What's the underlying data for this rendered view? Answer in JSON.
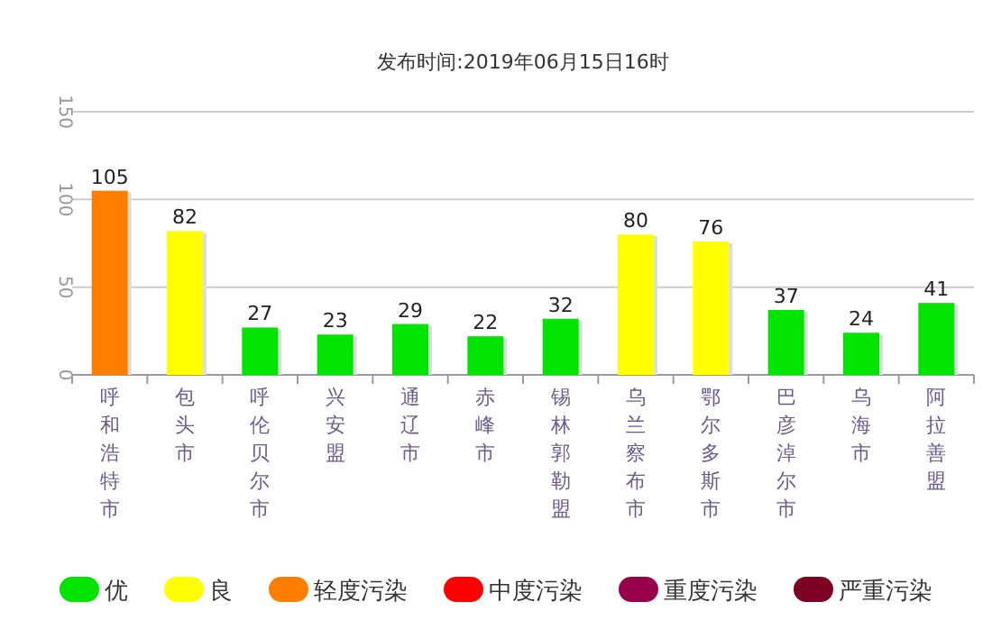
{
  "chart_data": {
    "type": "bar",
    "title": "发布时间:2019年06月15日16时",
    "categories": [
      "呼和浩特市",
      "包头市",
      "呼伦贝尔市",
      "兴安盟",
      "通辽市",
      "赤峰市",
      "锡林郭勒盟",
      "乌兰察布市",
      "鄂尔多斯市",
      "巴彦淖尔市",
      "乌海市",
      "阿拉善盟"
    ],
    "stacked": true,
    "series": [
      {
        "name": "优",
        "color": "#00e400",
        "values": [
          null,
          null,
          27,
          23,
          29,
          22,
          32,
          null,
          null,
          37,
          24,
          41
        ]
      },
      {
        "name": "良",
        "color": "#ffff00",
        "values": [
          null,
          82,
          null,
          null,
          null,
          null,
          null,
          80,
          76,
          null,
          null,
          null
        ]
      },
      {
        "name": "轻度污染",
        "color": "#ff7e00",
        "values": [
          105,
          null,
          null,
          null,
          null,
          null,
          null,
          null,
          null,
          null,
          null,
          null
        ]
      },
      {
        "name": "中度污染",
        "color": "#ff0000",
        "values": [
          null,
          null,
          null,
          null,
          null,
          null,
          null,
          null,
          null,
          null,
          null,
          null
        ]
      },
      {
        "name": "重度污染",
        "color": "#99004c",
        "values": [
          null,
          null,
          null,
          null,
          null,
          null,
          null,
          null,
          null,
          null,
          null,
          null
        ]
      },
      {
        "name": "严重污染",
        "color": "#7e0023",
        "values": [
          null,
          null,
          null,
          null,
          null,
          null,
          null,
          null,
          null,
          null,
          null,
          null
        ]
      }
    ],
    "ylim": [
      0,
      150
    ],
    "yticks": [
      0,
      50,
      100,
      150
    ],
    "grid": "y",
    "data_labels": true,
    "legend": "bottom"
  }
}
